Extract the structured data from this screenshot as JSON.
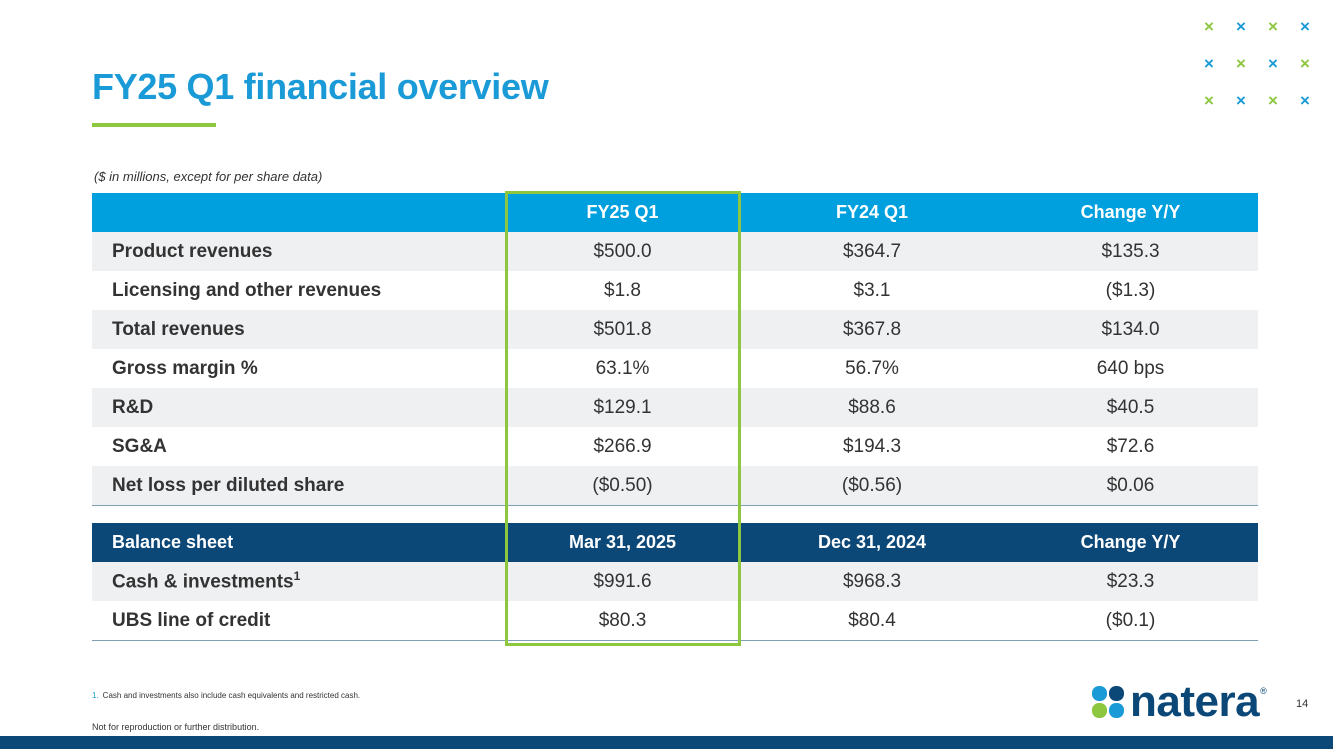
{
  "title": "FY25 Q1 financial overview",
  "units_note": "($ in millions, except for per share data)",
  "decor": {
    "cross_glyph": "×",
    "rows": [
      [
        "#8dc63f",
        "#1a9ad6",
        "#8dc63f",
        "#1a9ad6"
      ],
      [
        "#1a9ad6",
        "#8dc63f",
        "#1a9ad6",
        "#8dc63f"
      ],
      [
        "#8dc63f",
        "#1a9ad6",
        "#8dc63f",
        "#1a9ad6"
      ]
    ]
  },
  "financials": {
    "headers": [
      "",
      "FY25 Q1",
      "FY24 Q1",
      "Change Y/Y"
    ],
    "rows": [
      {
        "label": "Product revenues",
        "fy25": "$500.0",
        "fy24": "$364.7",
        "change": "$135.3"
      },
      {
        "label": "Licensing and other revenues",
        "fy25": "$1.8",
        "fy24": "$3.1",
        "change": "($1.3)"
      },
      {
        "label": "Total revenues",
        "fy25": "$501.8",
        "fy24": "$367.8",
        "change": "$134.0"
      },
      {
        "label": "Gross margin %",
        "fy25": "63.1%",
        "fy24": "56.7%",
        "change": "640 bps"
      },
      {
        "label": "R&D",
        "fy25": "$129.1",
        "fy24": "$88.6",
        "change": "$40.5"
      },
      {
        "label": "SG&A",
        "fy25": "$266.9",
        "fy24": "$194.3",
        "change": "$72.6"
      },
      {
        "label": "Net loss per diluted share",
        "fy25": "($0.50)",
        "fy24": "($0.56)",
        "change": "$0.06"
      }
    ]
  },
  "balance_sheet": {
    "headers": [
      "Balance sheet",
      "Mar 31, 2025",
      "Dec 31, 2024",
      "Change Y/Y"
    ],
    "rows": [
      {
        "label": "Cash & investments",
        "sup": "1",
        "mar": "$991.6",
        "dec": "$968.3",
        "change": "$23.3"
      },
      {
        "label": "UBS line of credit",
        "sup": "",
        "mar": "$80.3",
        "dec": "$80.4",
        "change": "($0.1)"
      }
    ]
  },
  "footnote": {
    "number": "1.",
    "text": "Cash and investments also include cash equivalents and restricted cash."
  },
  "disclaimer": "Not for reproduction or further distribution.",
  "logo": {
    "text": "natera",
    "reg": "®"
  },
  "page_number": "14",
  "colors": {
    "accent_blue": "#1a9ad6",
    "accent_green": "#8dc63f",
    "navy": "#0b4877",
    "header_blue": "#00a0df"
  }
}
